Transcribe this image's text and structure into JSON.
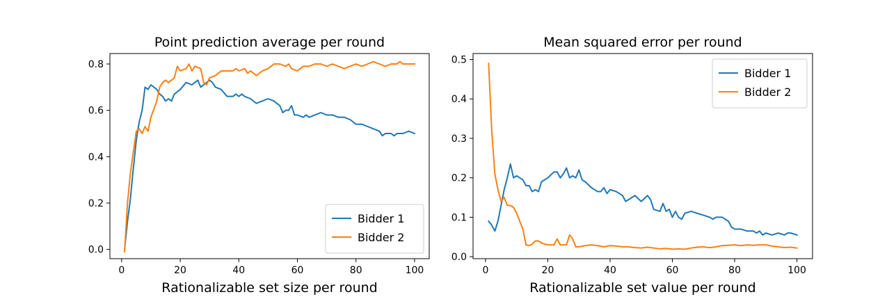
{
  "chart_data": [
    {
      "type": "line",
      "title": "Point prediction average per round",
      "xlabel": "Rationalizable set size per round",
      "ylabel": "",
      "xlim": [
        -4,
        105
      ],
      "ylim": [
        -0.04,
        0.845
      ],
      "xticks": [
        0,
        20,
        40,
        60,
        80,
        100
      ],
      "yticks": [
        0.0,
        0.2,
        0.4,
        0.6,
        0.8
      ],
      "ytick_labels": [
        "0.0",
        "0.2",
        "0.4",
        "0.6",
        "0.8"
      ],
      "grid": false,
      "legend": "bottom-right",
      "series": [
        {
          "name": "Bidder 1",
          "color": "#1f77b4",
          "points": [
            [
              1,
              0.0
            ],
            [
              2,
              0.12
            ],
            [
              3,
              0.22
            ],
            [
              4,
              0.35
            ],
            [
              5,
              0.47
            ],
            [
              6,
              0.55
            ],
            [
              7,
              0.6
            ],
            [
              8,
              0.7
            ],
            [
              9,
              0.69
            ],
            [
              10,
              0.71
            ],
            [
              11,
              0.7
            ],
            [
              12,
              0.69
            ],
            [
              13,
              0.67
            ],
            [
              14,
              0.66
            ],
            [
              15,
              0.64
            ],
            [
              16,
              0.65
            ],
            [
              17,
              0.64
            ],
            [
              18,
              0.67
            ],
            [
              20,
              0.69
            ],
            [
              22,
              0.72
            ],
            [
              24,
              0.71
            ],
            [
              26,
              0.73
            ],
            [
              27,
              0.7
            ],
            [
              28,
              0.71
            ],
            [
              29,
              0.72
            ],
            [
              30,
              0.73
            ],
            [
              31,
              0.72
            ],
            [
              32,
              0.7
            ],
            [
              34,
              0.69
            ],
            [
              36,
              0.66
            ],
            [
              38,
              0.66
            ],
            [
              39,
              0.67
            ],
            [
              40,
              0.66
            ],
            [
              41,
              0.67
            ],
            [
              42,
              0.66
            ],
            [
              44,
              0.65
            ],
            [
              46,
              0.63
            ],
            [
              48,
              0.64
            ],
            [
              50,
              0.65
            ],
            [
              52,
              0.64
            ],
            [
              54,
              0.62
            ],
            [
              55,
              0.59
            ],
            [
              56,
              0.6
            ],
            [
              57,
              0.6
            ],
            [
              58,
              0.62
            ],
            [
              59,
              0.58
            ],
            [
              60,
              0.58
            ],
            [
              62,
              0.57
            ],
            [
              63,
              0.58
            ],
            [
              64,
              0.57
            ],
            [
              66,
              0.58
            ],
            [
              68,
              0.59
            ],
            [
              70,
              0.58
            ],
            [
              72,
              0.58
            ],
            [
              74,
              0.57
            ],
            [
              76,
              0.57
            ],
            [
              78,
              0.56
            ],
            [
              80,
              0.54
            ],
            [
              82,
              0.54
            ],
            [
              84,
              0.53
            ],
            [
              86,
              0.52
            ],
            [
              88,
              0.51
            ],
            [
              89,
              0.49
            ],
            [
              90,
              0.5
            ],
            [
              92,
              0.5
            ],
            [
              93,
              0.49
            ],
            [
              94,
              0.5
            ],
            [
              96,
              0.5
            ],
            [
              98,
              0.51
            ],
            [
              100,
              0.5
            ]
          ]
        },
        {
          "name": "Bidder 2",
          "color": "#ff7f0e",
          "points": [
            [
              1,
              -0.01
            ],
            [
              2,
              0.2
            ],
            [
              3,
              0.33
            ],
            [
              4,
              0.42
            ],
            [
              5,
              0.51
            ],
            [
              6,
              0.52
            ],
            [
              7,
              0.5
            ],
            [
              8,
              0.53
            ],
            [
              9,
              0.51
            ],
            [
              10,
              0.57
            ],
            [
              12,
              0.64
            ],
            [
              13,
              0.7
            ],
            [
              14,
              0.72
            ],
            [
              15,
              0.73
            ],
            [
              16,
              0.72
            ],
            [
              18,
              0.74
            ],
            [
              19,
              0.79
            ],
            [
              20,
              0.77
            ],
            [
              22,
              0.78
            ],
            [
              23,
              0.8
            ],
            [
              24,
              0.77
            ],
            [
              25,
              0.79
            ],
            [
              27,
              0.78
            ],
            [
              28,
              0.72
            ],
            [
              29,
              0.71
            ],
            [
              30,
              0.74
            ],
            [
              32,
              0.75
            ],
            [
              34,
              0.77
            ],
            [
              36,
              0.77
            ],
            [
              38,
              0.77
            ],
            [
              39,
              0.78
            ],
            [
              40,
              0.77
            ],
            [
              42,
              0.78
            ],
            [
              43,
              0.76
            ],
            [
              44,
              0.77
            ],
            [
              46,
              0.75
            ],
            [
              48,
              0.77
            ],
            [
              50,
              0.78
            ],
            [
              52,
              0.8
            ],
            [
              54,
              0.8
            ],
            [
              56,
              0.79
            ],
            [
              57,
              0.8
            ],
            [
              58,
              0.78
            ],
            [
              60,
              0.77
            ],
            [
              62,
              0.79
            ],
            [
              64,
              0.79
            ],
            [
              66,
              0.8
            ],
            [
              68,
              0.8
            ],
            [
              70,
              0.79
            ],
            [
              72,
              0.8
            ],
            [
              74,
              0.79
            ],
            [
              76,
              0.78
            ],
            [
              78,
              0.79
            ],
            [
              80,
              0.8
            ],
            [
              82,
              0.79
            ],
            [
              84,
              0.8
            ],
            [
              86,
              0.81
            ],
            [
              88,
              0.8
            ],
            [
              90,
              0.79
            ],
            [
              92,
              0.8
            ],
            [
              94,
              0.8
            ],
            [
              95,
              0.81
            ],
            [
              96,
              0.8
            ],
            [
              98,
              0.8
            ],
            [
              100,
              0.8
            ]
          ]
        }
      ]
    },
    {
      "type": "line",
      "title": "Mean squared error per round",
      "xlabel": "Rationalizable set value per round",
      "ylabel": "",
      "xlim": [
        -4,
        105
      ],
      "ylim": [
        -0.005,
        0.515
      ],
      "xticks": [
        0,
        20,
        40,
        60,
        80,
        100
      ],
      "yticks": [
        0.0,
        0.1,
        0.2,
        0.3,
        0.4,
        0.5
      ],
      "ytick_labels": [
        "0.0",
        "0.1",
        "0.2",
        "0.3",
        "0.4",
        "0.5"
      ],
      "grid": false,
      "legend": "top-right",
      "series": [
        {
          "name": "Bidder 1",
          "color": "#1f77b4",
          "points": [
            [
              1,
              0.09
            ],
            [
              2,
              0.08
            ],
            [
              3,
              0.065
            ],
            [
              4,
              0.09
            ],
            [
              5,
              0.13
            ],
            [
              6,
              0.17
            ],
            [
              7,
              0.2
            ],
            [
              8,
              0.235
            ],
            [
              9,
              0.2
            ],
            [
              10,
              0.205
            ],
            [
              11,
              0.2
            ],
            [
              12,
              0.195
            ],
            [
              13,
              0.18
            ],
            [
              14,
              0.18
            ],
            [
              15,
              0.165
            ],
            [
              16,
              0.17
            ],
            [
              17,
              0.165
            ],
            [
              18,
              0.19
            ],
            [
              20,
              0.2
            ],
            [
              22,
              0.215
            ],
            [
              23,
              0.215
            ],
            [
              24,
              0.2
            ],
            [
              25,
              0.21
            ],
            [
              26,
              0.225
            ],
            [
              27,
              0.2
            ],
            [
              28,
              0.205
            ],
            [
              29,
              0.2
            ],
            [
              30,
              0.22
            ],
            [
              31,
              0.195
            ],
            [
              32,
              0.19
            ],
            [
              34,
              0.175
            ],
            [
              36,
              0.165
            ],
            [
              37,
              0.165
            ],
            [
              38,
              0.175
            ],
            [
              39,
              0.16
            ],
            [
              40,
              0.17
            ],
            [
              42,
              0.165
            ],
            [
              44,
              0.155
            ],
            [
              45,
              0.14
            ],
            [
              46,
              0.145
            ],
            [
              48,
              0.155
            ],
            [
              50,
              0.14
            ],
            [
              52,
              0.155
            ],
            [
              53,
              0.145
            ],
            [
              54,
              0.12
            ],
            [
              56,
              0.115
            ],
            [
              57,
              0.135
            ],
            [
              58,
              0.115
            ],
            [
              59,
              0.12
            ],
            [
              60,
              0.1
            ],
            [
              61,
              0.115
            ],
            [
              62,
              0.1
            ],
            [
              63,
              0.095
            ],
            [
              64,
              0.11
            ],
            [
              66,
              0.115
            ],
            [
              68,
              0.11
            ],
            [
              70,
              0.105
            ],
            [
              72,
              0.1
            ],
            [
              73,
              0.095
            ],
            [
              74,
              0.1
            ],
            [
              76,
              0.1
            ],
            [
              78,
              0.09
            ],
            [
              79,
              0.075
            ],
            [
              80,
              0.07
            ],
            [
              82,
              0.07
            ],
            [
              84,
              0.065
            ],
            [
              86,
              0.065
            ],
            [
              87,
              0.06
            ],
            [
              88,
              0.065
            ],
            [
              89,
              0.055
            ],
            [
              90,
              0.06
            ],
            [
              92,
              0.055
            ],
            [
              94,
              0.06
            ],
            [
              96,
              0.055
            ],
            [
              97,
              0.06
            ],
            [
              98,
              0.06
            ],
            [
              100,
              0.055
            ]
          ]
        },
        {
          "name": "Bidder 2",
          "color": "#ff7f0e",
          "points": [
            [
              1,
              0.49
            ],
            [
              2,
              0.32
            ],
            [
              3,
              0.21
            ],
            [
              4,
              0.17
            ],
            [
              5,
              0.14
            ],
            [
              6,
              0.15
            ],
            [
              7,
              0.13
            ],
            [
              8,
              0.13
            ],
            [
              9,
              0.125
            ],
            [
              10,
              0.11
            ],
            [
              11,
              0.09
            ],
            [
              12,
              0.07
            ],
            [
              13,
              0.03
            ],
            [
              14,
              0.028
            ],
            [
              15,
              0.032
            ],
            [
              16,
              0.04
            ],
            [
              17,
              0.04
            ],
            [
              18,
              0.035
            ],
            [
              19,
              0.032
            ],
            [
              20,
              0.03
            ],
            [
              22,
              0.03
            ],
            [
              23,
              0.045
            ],
            [
              24,
              0.03
            ],
            [
              26,
              0.03
            ],
            [
              27,
              0.055
            ],
            [
              28,
              0.045
            ],
            [
              29,
              0.025
            ],
            [
              30,
              0.025
            ],
            [
              32,
              0.028
            ],
            [
              34,
              0.03
            ],
            [
              36,
              0.028
            ],
            [
              38,
              0.025
            ],
            [
              40,
              0.028
            ],
            [
              42,
              0.027
            ],
            [
              44,
              0.025
            ],
            [
              46,
              0.025
            ],
            [
              48,
              0.023
            ],
            [
              50,
              0.022
            ],
            [
              52,
              0.024
            ],
            [
              54,
              0.022
            ],
            [
              56,
              0.02
            ],
            [
              58,
              0.021
            ],
            [
              60,
              0.019
            ],
            [
              62,
              0.02
            ],
            [
              64,
              0.019
            ],
            [
              66,
              0.022
            ],
            [
              68,
              0.024
            ],
            [
              70,
              0.025
            ],
            [
              72,
              0.023
            ],
            [
              74,
              0.025
            ],
            [
              76,
              0.028
            ],
            [
              78,
              0.029
            ],
            [
              80,
              0.03
            ],
            [
              82,
              0.028
            ],
            [
              84,
              0.03
            ],
            [
              86,
              0.029
            ],
            [
              88,
              0.03
            ],
            [
              90,
              0.03
            ],
            [
              92,
              0.027
            ],
            [
              94,
              0.025
            ],
            [
              96,
              0.023
            ],
            [
              98,
              0.024
            ],
            [
              100,
              0.022
            ]
          ]
        }
      ]
    }
  ]
}
